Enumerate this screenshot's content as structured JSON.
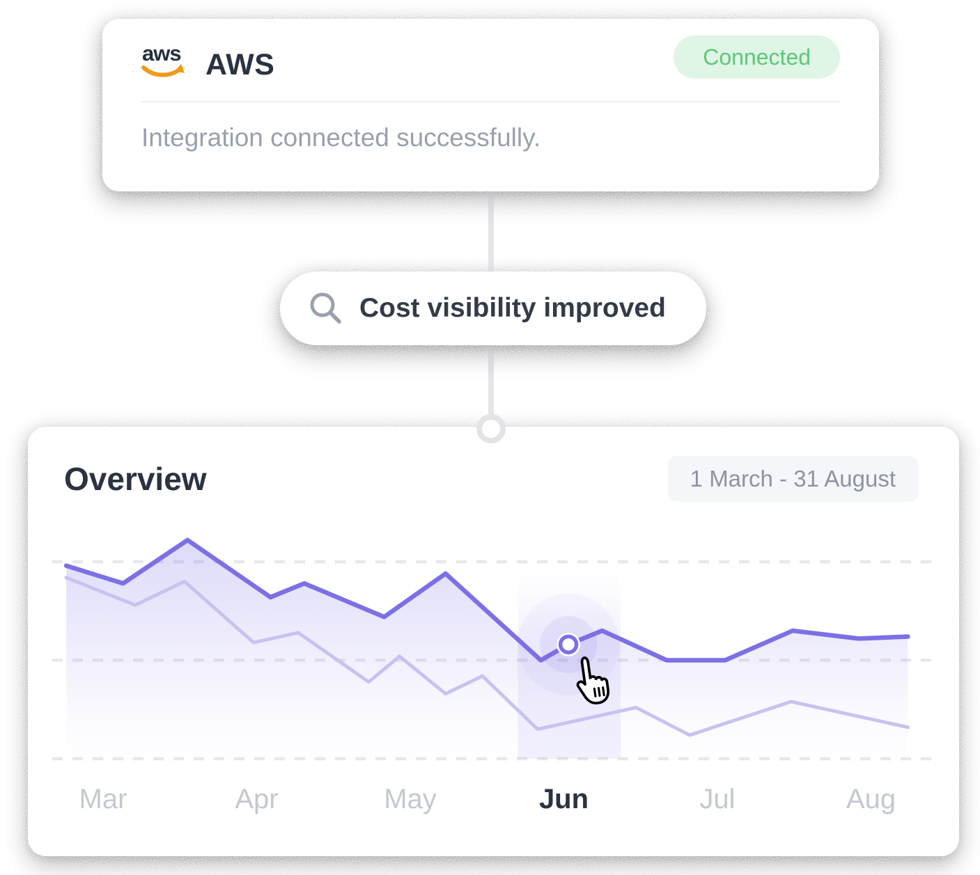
{
  "integration_card": {
    "logo_icon": "aws-logo",
    "logo_text": "aws",
    "title": "AWS",
    "status_badge": "Connected",
    "message": "Integration connected successfully."
  },
  "insight_pill": {
    "icon": "search-icon",
    "label": "Cost visibility improved"
  },
  "overview_card": {
    "title": "Overview",
    "date_range": "1 March - 31 August"
  },
  "chart_data": {
    "type": "area",
    "title": "Overview",
    "x_axis": {
      "labels": [
        "Mar",
        "Apr",
        "May",
        "Jun",
        "Jul",
        "Aug"
      ],
      "active_label": "Jun"
    },
    "y_axis": {
      "visible": false,
      "range": [
        0,
        100
      ],
      "note": "no numeric ticks shown; values estimated, 0 = bottom gridline, 100 = top gridline"
    },
    "grid": {
      "style": "dashed-horizontal",
      "levels": [
        0,
        50,
        100
      ]
    },
    "legend": "none",
    "series": [
      {
        "name": "primary",
        "color": "#7C70E6",
        "fill": "vertical-fade",
        "points": [
          [
            -0.24,
            98
          ],
          [
            0.13,
            89
          ],
          [
            0.55,
            111
          ],
          [
            1.09,
            82
          ],
          [
            1.31,
            89
          ],
          [
            1.83,
            72
          ],
          [
            2.23,
            94
          ],
          [
            2.85,
            50
          ],
          [
            3.03,
            58
          ],
          [
            3.25,
            65
          ],
          [
            3.67,
            50
          ],
          [
            4.05,
            50
          ],
          [
            4.49,
            65
          ],
          [
            4.92,
            61
          ],
          [
            5.24,
            62
          ]
        ]
      },
      {
        "name": "secondary",
        "color": "#C7C3F0",
        "fill": "none",
        "points": [
          [
            -0.24,
            92
          ],
          [
            0.21,
            78
          ],
          [
            0.53,
            90
          ],
          [
            0.98,
            59
          ],
          [
            1.27,
            64
          ],
          [
            1.73,
            39
          ],
          [
            1.93,
            52
          ],
          [
            2.23,
            33
          ],
          [
            2.47,
            42
          ],
          [
            2.83,
            15
          ],
          [
            3.47,
            26
          ],
          [
            3.82,
            12
          ],
          [
            4.48,
            29
          ],
          [
            5.24,
            16
          ]
        ]
      }
    ],
    "highlight": {
      "month": "Jun",
      "point": [
        3.03,
        58
      ],
      "band_x": [
        2.7,
        3.37
      ],
      "cursor": "hand-pointer"
    },
    "colors": {
      "grid": "#E7E8EC",
      "band": "#7C70E6",
      "month_active": "#2B3340",
      "month_inactive": "#C5C8D1"
    }
  },
  "colors": {
    "accent": "#7C70E6",
    "accent_light": "#C7C3F0",
    "status_badge_bg": "#DFF5E5",
    "status_badge_text": "#5BC878",
    "aws_smile_orange": "#F49819",
    "connector_gray": "#E3E3E8"
  }
}
